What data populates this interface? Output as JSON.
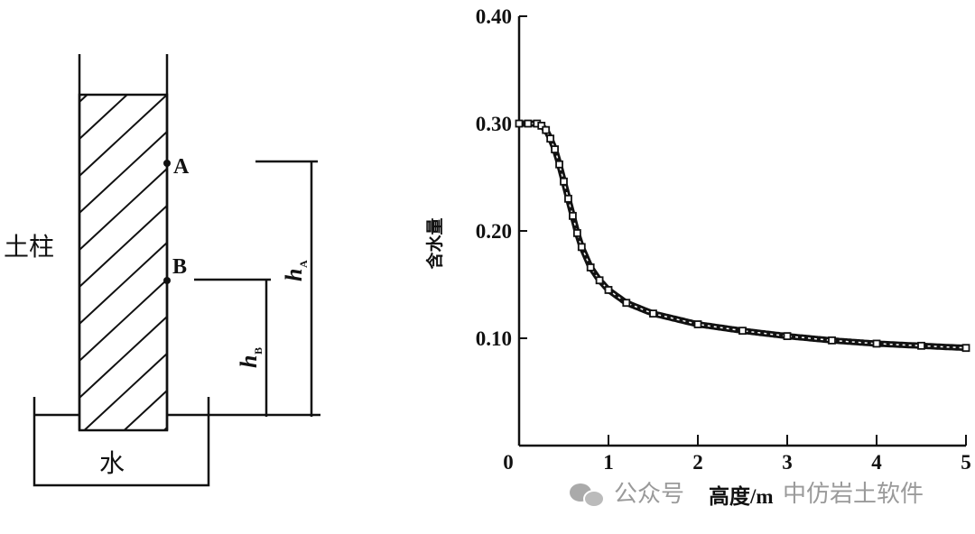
{
  "diagram": {
    "column_label": "土柱",
    "water_label": "水",
    "point_a": "A",
    "point_b": "B",
    "h_a": "h",
    "h_a_sub": "A",
    "h_b": "h",
    "h_b_sub": "B"
  },
  "chart_data": {
    "type": "scatter",
    "title": "",
    "xlabel": "高度/m",
    "ylabel": "含水量",
    "xlim": [
      0,
      5
    ],
    "ylim": [
      0,
      0.4
    ],
    "x_ticks": [
      "0",
      "1",
      "2",
      "3",
      "4",
      "5"
    ],
    "y_ticks": [
      "0.10",
      "0.20",
      "0.30",
      "0.40"
    ],
    "grid": false,
    "x": [
      0,
      0.1,
      0.2,
      0.25,
      0.3,
      0.35,
      0.4,
      0.45,
      0.5,
      0.55,
      0.6,
      0.65,
      0.7,
      0.8,
      0.9,
      1.0,
      1.2,
      1.5,
      2.0,
      2.5,
      3.0,
      3.5,
      4.0,
      4.5,
      5.0
    ],
    "y": [
      0.3,
      0.3,
      0.3,
      0.298,
      0.294,
      0.286,
      0.276,
      0.262,
      0.246,
      0.23,
      0.214,
      0.198,
      0.185,
      0.166,
      0.154,
      0.145,
      0.133,
      0.123,
      0.113,
      0.107,
      0.102,
      0.098,
      0.095,
      0.093,
      0.091
    ]
  },
  "watermark": {
    "prefix": "公众号",
    "name": "中仿岩土软件"
  }
}
